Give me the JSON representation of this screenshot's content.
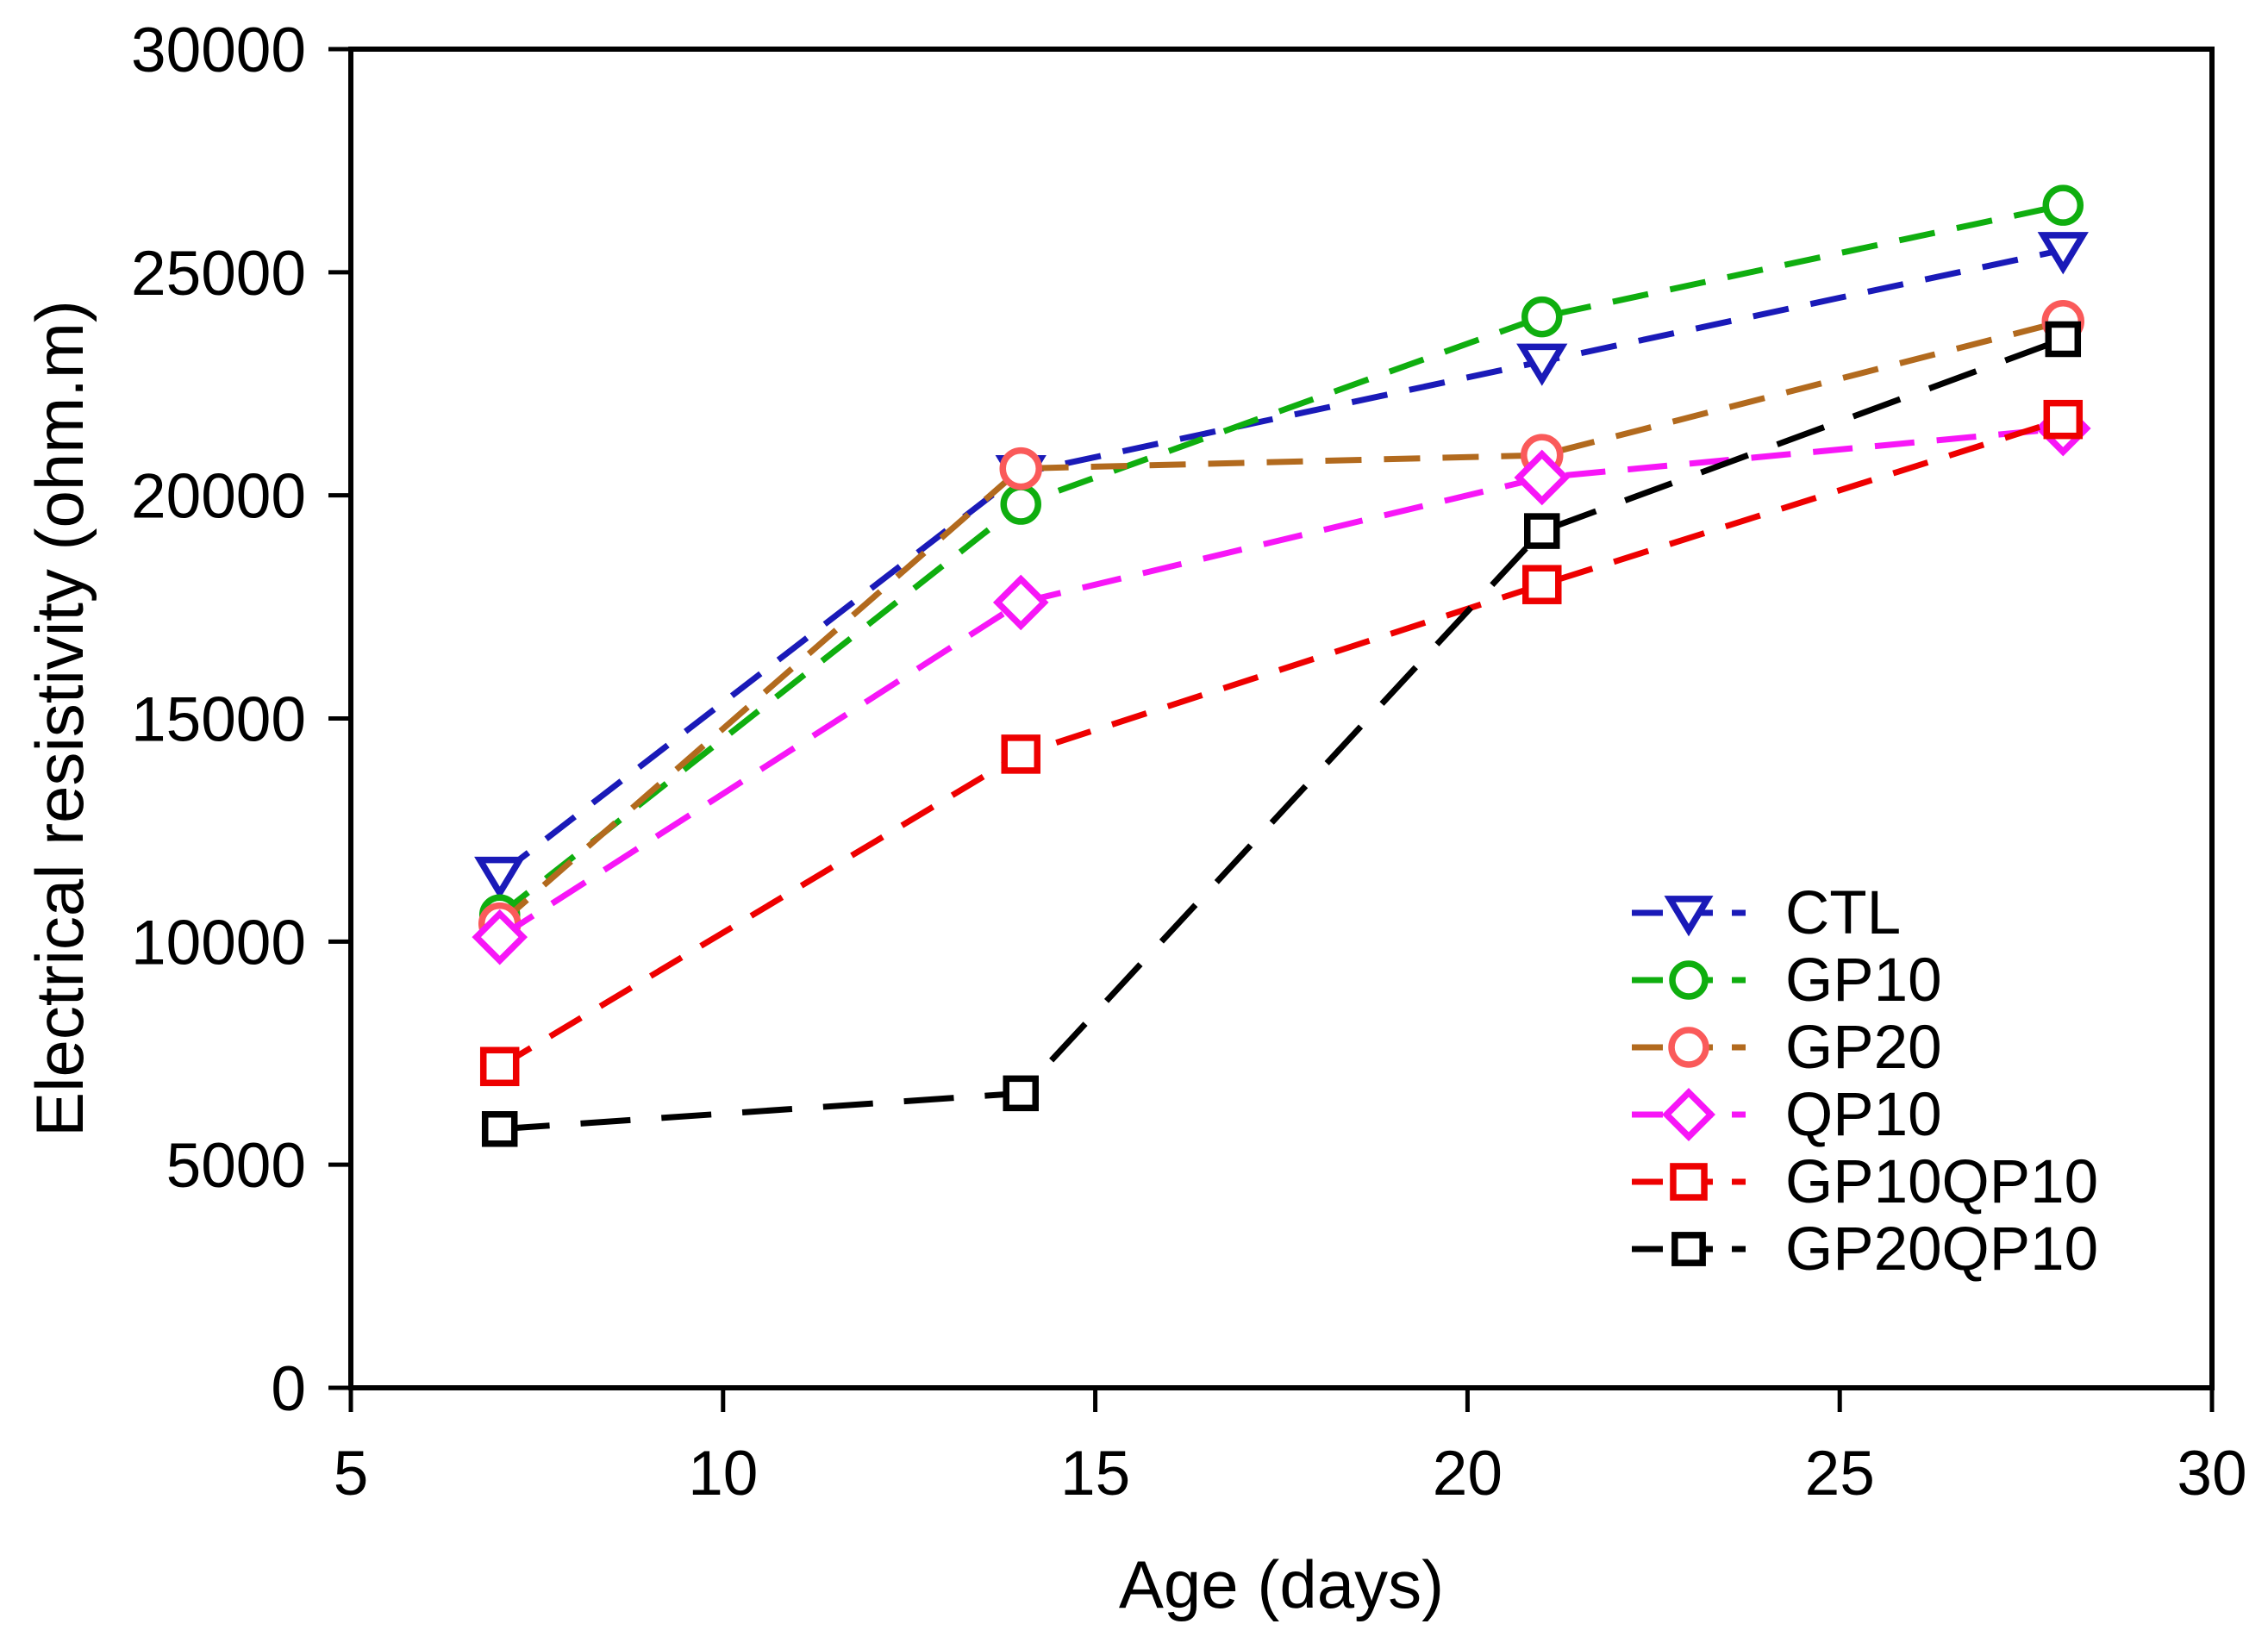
{
  "figure": {
    "background_color": "#ffffff",
    "frame_color": "#000000"
  },
  "chart_data": {
    "type": "line",
    "title": "",
    "xlabel": "Age (days)",
    "ylabel": "Electrical resistivity (ohm.m)",
    "x": [
      7,
      14,
      21,
      28
    ],
    "xlim": [
      5,
      30
    ],
    "ylim": [
      0,
      30000
    ],
    "x_ticks": [
      5,
      10,
      15,
      20,
      25,
      30
    ],
    "y_ticks": [
      0,
      5000,
      10000,
      15000,
      20000,
      25000,
      30000
    ],
    "grid": false,
    "frame": "full-box",
    "legend_position": "inside lower right",
    "series": [
      {
        "name": "CTL",
        "values": [
          11500,
          20500,
          23000,
          25500
        ],
        "line_color": "#1a1ab8",
        "marker_color": "#1a1ab8",
        "marker": "triangle-down",
        "marker_size": 46,
        "dash": [
          42,
          26
        ]
      },
      {
        "name": "GP10",
        "values": [
          10600,
          19800,
          24000,
          26500
        ],
        "line_color": "#0fae0f",
        "marker_color": "#0fae0f",
        "marker": "circle",
        "marker_size": 40,
        "dash": [
          42,
          26
        ]
      },
      {
        "name": "GP20",
        "values": [
          10400,
          20600,
          20900,
          23900
        ],
        "line_color": "#b26a1e",
        "marker_color": "#fa5a5a",
        "marker": "circle",
        "marker_size": 42,
        "dash": [
          42,
          26
        ]
      },
      {
        "name": "QP10",
        "values": [
          10100,
          17600,
          20400,
          21500
        ],
        "line_color": "#f716f7",
        "marker_color": "#f716f7",
        "marker": "diamond",
        "marker_size": 54,
        "dash": [
          46,
          26
        ]
      },
      {
        "name": "GP10QP10",
        "values": [
          7200,
          14200,
          18000,
          21700
        ],
        "line_color": "#ee0000",
        "marker_color": "#ee0000",
        "marker": "square",
        "marker_size": 38,
        "dash": [
          42,
          26
        ]
      },
      {
        "name": "GP20QP10",
        "values": [
          5800,
          6600,
          19200,
          23500
        ],
        "line_color": "#000000",
        "marker_color": "#000000",
        "marker": "square",
        "marker_size": 34,
        "dash": [
          58,
          36
        ]
      }
    ]
  }
}
